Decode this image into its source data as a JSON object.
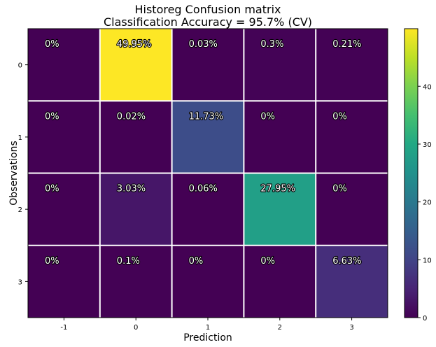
{
  "chart_data": {
    "type": "heatmap",
    "title": "Historeg Confusion matrix",
    "subtitle": "Classification Accuracy = 95.7% (CV)",
    "xlabel": "Prediction",
    "ylabel": "Observations",
    "x_categories": [
      "-1",
      "0",
      "1",
      "2",
      "3"
    ],
    "y_categories": [
      "0",
      "1",
      "2",
      "3"
    ],
    "values": [
      [
        0,
        49.95,
        0.03,
        0.3,
        0.21
      ],
      [
        0,
        0.02,
        11.73,
        0,
        0
      ],
      [
        0,
        3.03,
        0.06,
        27.95,
        0
      ],
      [
        0,
        0.1,
        0,
        0,
        6.63
      ]
    ],
    "cell_labels": [
      [
        "0%",
        "49.95%",
        "0.03%",
        "0.3%",
        "0.21%"
      ],
      [
        "0%",
        "0.02%",
        "11.73%",
        "0%",
        "0%"
      ],
      [
        "0%",
        "3.03%",
        "0.06%",
        "27.95%",
        "0%"
      ],
      [
        "0%",
        "0.1%",
        "0%",
        "0%",
        "6.63%"
      ]
    ],
    "colormap": "viridis",
    "colorbar": {
      "range": [
        0,
        49.95
      ],
      "ticks": [
        0,
        10,
        20,
        30,
        40
      ]
    },
    "grid_line_color": "#ffffff"
  }
}
